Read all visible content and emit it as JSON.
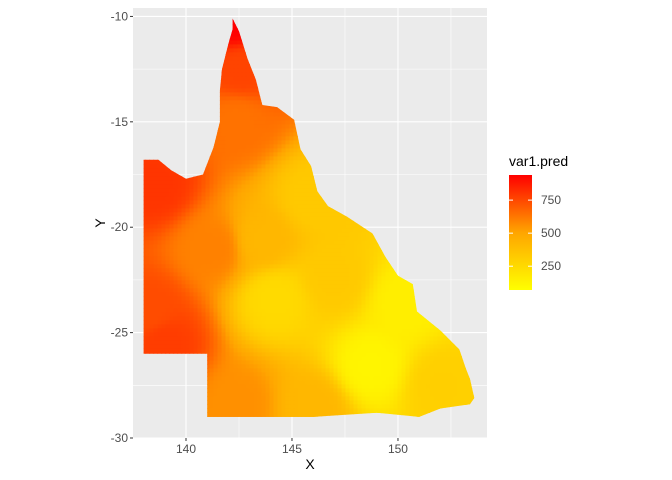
{
  "chart_data": {
    "type": "heatmap",
    "title": "",
    "xlabel": "X",
    "ylabel": "Y",
    "xlim": [
      137.5,
      154.2
    ],
    "ylim": [
      -30.0,
      -9.6
    ],
    "x_ticks": [
      140,
      145,
      150
    ],
    "y_ticks": [
      -10,
      -15,
      -20,
      -25,
      -30
    ],
    "x_tick_labels": [
      "140",
      "145",
      "150"
    ],
    "y_tick_labels": [
      "-10",
      "-15",
      "-20",
      "-25",
      "-30"
    ],
    "grid": true,
    "panel_background": "#ebebeb",
    "grid_color": "#ffffff",
    "legend": {
      "title": "var1.pred",
      "placement": "right",
      "breaks": [
        250,
        500,
        750
      ],
      "break_labels": [
        "250",
        "500",
        "750"
      ],
      "range": [
        70,
        940
      ],
      "colors": [
        "#ffff00",
        "#ffa500",
        "#ff0000"
      ]
    },
    "fill_variable": "var1.pred",
    "region_outline": [
      [
        142.2,
        -10.1
      ],
      [
        142.5,
        -10.7
      ],
      [
        142.9,
        -12.0
      ],
      [
        143.3,
        -13.0
      ],
      [
        143.6,
        -14.2
      ],
      [
        144.3,
        -14.3
      ],
      [
        145.1,
        -14.9
      ],
      [
        145.4,
        -16.3
      ],
      [
        145.9,
        -17.1
      ],
      [
        146.2,
        -18.3
      ],
      [
        146.7,
        -19.0
      ],
      [
        147.6,
        -19.5
      ],
      [
        148.8,
        -20.3
      ],
      [
        149.4,
        -21.4
      ],
      [
        150.0,
        -22.3
      ],
      [
        150.7,
        -22.7
      ],
      [
        150.9,
        -24.0
      ],
      [
        152.0,
        -24.9
      ],
      [
        152.9,
        -25.8
      ],
      [
        153.2,
        -26.7
      ],
      [
        153.4,
        -27.2
      ],
      [
        153.6,
        -28.1
      ],
      [
        153.4,
        -28.4
      ],
      [
        152.0,
        -28.6
      ],
      [
        151.0,
        -29.0
      ],
      [
        149.0,
        -28.8
      ],
      [
        146.0,
        -29.0
      ],
      [
        141.0,
        -29.0
      ],
      [
        141.0,
        -26.0
      ],
      [
        138.0,
        -26.0
      ],
      [
        138.0,
        -16.8
      ],
      [
        138.7,
        -16.8
      ],
      [
        139.3,
        -17.3
      ],
      [
        140.0,
        -17.7
      ],
      [
        140.8,
        -17.5
      ],
      [
        141.3,
        -16.2
      ],
      [
        141.6,
        -15.0
      ],
      [
        141.6,
        -13.5
      ],
      [
        141.7,
        -12.5
      ],
      [
        142.0,
        -11.3
      ],
      [
        142.2,
        -10.6
      ]
    ],
    "surface_points": [
      {
        "x": 142.3,
        "y": -10.2,
        "value": 940
      },
      {
        "x": 142.6,
        "y": -12.5,
        "value": 760
      },
      {
        "x": 142.4,
        "y": -15.0,
        "value": 640
      },
      {
        "x": 138.6,
        "y": -18.0,
        "value": 800
      },
      {
        "x": 138.3,
        "y": -24.0,
        "value": 740
      },
      {
        "x": 139.0,
        "y": -25.5,
        "value": 780
      },
      {
        "x": 141.3,
        "y": -21.0,
        "value": 600
      },
      {
        "x": 143.6,
        "y": -20.6,
        "value": 420
      },
      {
        "x": 144.2,
        "y": -23.4,
        "value": 250
      },
      {
        "x": 148.7,
        "y": -26.6,
        "value": 120
      },
      {
        "x": 152.0,
        "y": -27.5,
        "value": 300
      },
      {
        "x": 150.3,
        "y": -23.6,
        "value": 150
      },
      {
        "x": 146.0,
        "y": -18.6,
        "value": 330
      },
      {
        "x": 147.0,
        "y": -22.5,
        "value": 330
      },
      {
        "x": 142.5,
        "y": -28.4,
        "value": 560
      },
      {
        "x": 146.0,
        "y": -28.5,
        "value": 420
      }
    ]
  }
}
